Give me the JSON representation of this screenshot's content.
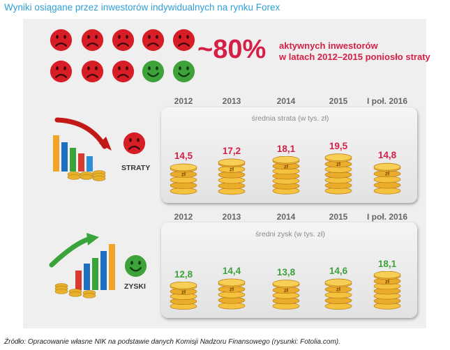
{
  "title": "Wyniki osiągane przez inwestorów indywidualnych na rynku Forex",
  "top": {
    "faces": [
      "sad",
      "sad",
      "sad",
      "sad",
      "sad",
      "sad",
      "sad",
      "sad",
      "happy",
      "happy"
    ],
    "percent": "~80%",
    "desc_line1": "aktywnych inwestorów",
    "desc_line2": "w latach 2012–2015 poniosło straty"
  },
  "colors": {
    "loss": "#d51f47",
    "gain": "#3ea23a",
    "title": "#2f9fd6"
  },
  "chart_data": [
    {
      "type": "bar",
      "title": "średnia strata (w tys. zł)",
      "section_label": "STRATY",
      "categories": [
        "2012",
        "2013",
        "2014",
        "2015",
        "I poł. 2016"
      ],
      "values": [
        14.5,
        17.2,
        18.1,
        19.5,
        14.8
      ],
      "labels": [
        "14,5",
        "17,2",
        "18,1",
        "19,5",
        "14,8"
      ],
      "coin_label": "zł"
    },
    {
      "type": "bar",
      "title": "średni zysk (w tys. zł)",
      "section_label": "ZYSKI",
      "categories": [
        "2012",
        "2013",
        "2014",
        "2015",
        "I poł. 2016"
      ],
      "values": [
        12.8,
        14.4,
        13.8,
        14.6,
        18.1
      ],
      "labels": [
        "12,8",
        "14,4",
        "13,8",
        "14,6",
        "18,1"
      ],
      "coin_label": "zł"
    }
  ],
  "footer": "Źródło: Opracowanie własne NIK na podstawie danych Komisji Nadzoru Finansowego (rysunki: Fotolia.com)."
}
